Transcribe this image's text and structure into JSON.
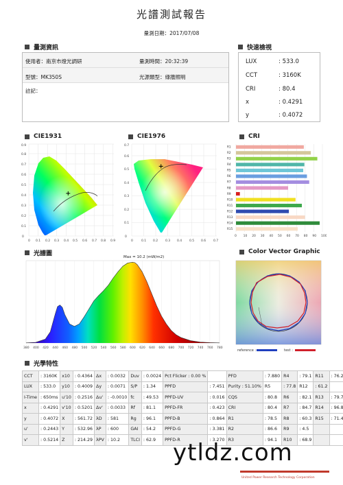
{
  "header": {
    "title": "光譜測試報告",
    "date": "量測日期：2017/07/08"
  },
  "measure_info": {
    "section": "量測資訊",
    "user": "使用者：南京市燈光調研",
    "time": "量測時間：20:32:39",
    "model": "型號：MK350S",
    "source_type": "光源類型：綠牆照明",
    "note": "註記："
  },
  "quick_check": {
    "section": "快速檢視",
    "items": [
      {
        "key": "LUX",
        "value": ": 533.0"
      },
      {
        "key": "CCT",
        "value": ": 3160K"
      },
      {
        "key": "CRI",
        "value": ": 80.4"
      },
      {
        "key": "x",
        "value": ": 0.4291"
      },
      {
        "key": "y",
        "value": ": 0.4072"
      }
    ]
  },
  "cie1931": {
    "section": "CIE1931",
    "y_ticks": [
      "0.9",
      "0.8",
      "0.7",
      "0.6",
      "0.5",
      "0.4",
      "0.3",
      "0.2",
      "0.1",
      "0"
    ],
    "x_ticks": [
      "0",
      "0.1",
      "0.2",
      "0.3",
      "0.4",
      "0.5",
      "0.6",
      "0.7",
      "0.8",
      "0.9"
    ],
    "point": {
      "x": 0.4291,
      "y": 0.4072
    }
  },
  "cie1976": {
    "section": "CIE1976",
    "y_ticks": [
      "0.7",
      "0.6",
      "0.5",
      "0.4",
      "0.3",
      "0.2",
      "0.1",
      "0"
    ],
    "x_ticks": [
      "0",
      "0.1",
      "0.2",
      "0.3",
      "0.4",
      "0.5",
      "0.6",
      "0.7"
    ],
    "point": {
      "x": 0.2443,
      "y": 0.5214
    }
  },
  "chart_data": [
    {
      "type": "bar",
      "title": "CRI",
      "categories": [
        "R1",
        "R2",
        "R3",
        "R4",
        "R5",
        "R6",
        "R7",
        "R8",
        "R9",
        "R10",
        "R11",
        "R12",
        "R13",
        "R14",
        "R15"
      ],
      "values": [
        78.5,
        86.6,
        94.1,
        79.1,
        77.8,
        82.1,
        84.7,
        60.3,
        4.5,
        68.9,
        76.2,
        61.2,
        79.7,
        96.8,
        71.4
      ],
      "colors": [
        "#f0a8a0",
        "#d4c79a",
        "#93d24a",
        "#4fb6a8",
        "#6ec6d6",
        "#6a9ee0",
        "#a48ee0",
        "#e498c4",
        "#d82020",
        "#f0e020",
        "#3ca84a",
        "#2f4bb0",
        "#f8d8c4",
        "#2e8b3a",
        "#f8e0c8"
      ],
      "x_ticks": [
        "0",
        "10",
        "20",
        "30",
        "40",
        "50",
        "60",
        "70",
        "80",
        "90",
        "100"
      ],
      "xlim": [
        0,
        100
      ]
    },
    {
      "type": "area",
      "title": "光譜圖",
      "annotation": "Max = 10.2 (mW/m2)",
      "x_ticks": [
        "380",
        "400",
        "420",
        "440",
        "460",
        "480",
        "500",
        "520",
        "540",
        "560",
        "580",
        "600",
        "620",
        "640",
        "660",
        "680",
        "700",
        "720",
        "740",
        "760",
        "780"
      ],
      "x": [
        380,
        400,
        420,
        430,
        440,
        445,
        450,
        455,
        460,
        470,
        480,
        490,
        500,
        510,
        520,
        530,
        540,
        550,
        560,
        570,
        580,
        590,
        600,
        605,
        610,
        620,
        630,
        640,
        650,
        660,
        670,
        680,
        690,
        700,
        720,
        740,
        760,
        780
      ],
      "values": [
        0.02,
        0.08,
        0.5,
        1.4,
        3.6,
        4.6,
        4.8,
        4.5,
        3.6,
        2.4,
        2.1,
        2.4,
        3.3,
        4.3,
        5.3,
        6.0,
        6.6,
        7.3,
        8.2,
        9.0,
        9.7,
        10.1,
        10.2,
        10.15,
        9.9,
        9.0,
        7.7,
        6.2,
        4.7,
        3.4,
        2.4,
        1.6,
        1.05,
        0.7,
        0.3,
        0.12,
        0.05,
        0.02
      ],
      "xlim": [
        380,
        780
      ]
    }
  ],
  "spectrum": {
    "section": "光譜圖",
    "max_label": "Max = 10.2 (mW/m2)"
  },
  "color_vector": {
    "section": "Color Vector Graphic",
    "reference": "reference :",
    "test": "test :"
  },
  "optical": {
    "section": "光學特性",
    "rows": [
      [
        "CCT",
        ": 3160K",
        "x10",
        ": 0.4364",
        "Δx",
        ": 0.0032",
        "Duv",
        ": 0.0024",
        "Pct Flicker : 0.00 %",
        "",
        "PFD",
        ": 7.880",
        "R4",
        ": 79.1",
        "R11",
        ": 76.2"
      ],
      [
        "LUX",
        ": 533.0",
        "y10",
        ": 0.4009",
        "Δy",
        ": 0.0071",
        "S/P",
        ": 1.34",
        "PPFD",
        ": 7.451",
        "Purity : 51.10%",
        "R5",
        ": 77.8",
        "R12",
        ": 61.2",
        ""
      ],
      [
        "I-Time",
        ": 650ms",
        "u'10",
        ": 0.2516",
        "Δu'",
        ": -0.0010",
        "fc",
        ": 49.53",
        "PPFD-UV",
        ": 0.016",
        "CQS",
        ": 80.8",
        "R6",
        ": 82.1",
        "R13",
        ": 79.7"
      ],
      [
        "x",
        ": 0.4291",
        "v'10",
        ": 0.5201",
        "Δv'",
        ": 0.0033",
        "Rf",
        ": 81.1",
        "PPFD-FR",
        ": 0.423",
        "CRI",
        ": 80.4",
        "R7",
        ": 84.7",
        "R14",
        ": 96.8"
      ],
      [
        "y",
        ": 0.4072",
        "X",
        ": 561.72",
        "λD",
        ": 581",
        "Rg",
        ": 96.1",
        "PPFD-B",
        ": 0.864",
        "R1",
        ": 78.5",
        "R8",
        ": 60.3",
        "R15",
        ": 71.4"
      ],
      [
        "u'",
        ": 0.2443",
        "Y",
        ": 532.96",
        "λP",
        ": 600",
        "GAI",
        ": 54.2",
        "PPFD-G",
        ": 3.381",
        "R2",
        ": 86.6",
        "R9",
        ": 4.5",
        "",
        ""
      ],
      [
        "v'",
        ": 0.5214",
        "Z",
        ": 214.29",
        "λPV",
        ": 10.2",
        "TLCI",
        ": 62.9",
        "PPFD-R",
        ": 3.270",
        "R3",
        ": 94.1",
        "R10",
        ": 68.9",
        "",
        ""
      ]
    ]
  },
  "watermark": {
    "text": "ytldz.com",
    "sub": "United Power Research Technology Corporation"
  }
}
